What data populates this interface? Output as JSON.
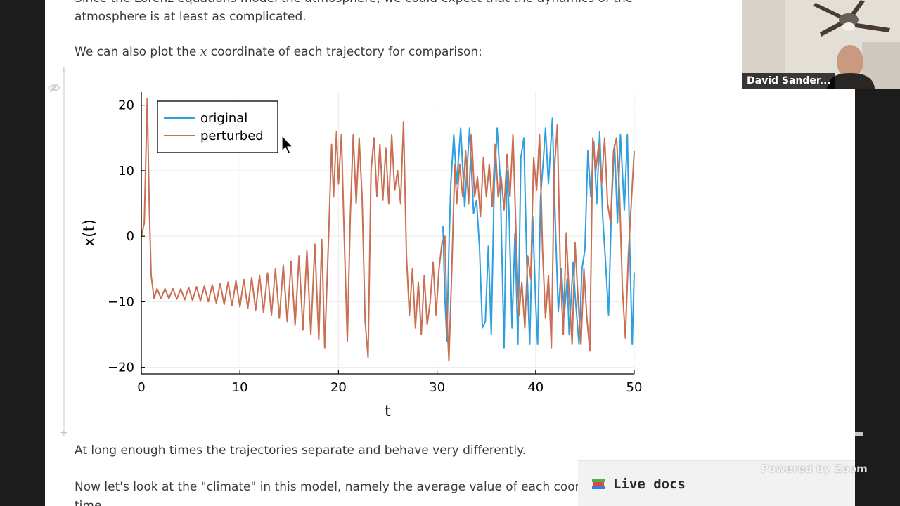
{
  "notebook": {
    "paragraph_top_1": "Since the Lorenz equations model the atmosphere, we could expect that the dynamics of the",
    "paragraph_top_2": "atmosphere is at least as complicated.",
    "paragraph_plot_before": "We can also plot the ",
    "paragraph_plot_var": "x",
    "paragraph_plot_after": " coordinate of each trajectory for comparison:",
    "paragraph_separate": "At long enough times the trajectories separate and behave very differently.",
    "paragraph_climate": "Now let's look at the \"climate\" in this model, namely the average value of each coordinate",
    "paragraph_climate_cont": "time",
    "cell_add_symbol": "+"
  },
  "chart_data": {
    "type": "line",
    "xlabel": "t",
    "ylabel": "x(t)",
    "xlim": [
      0,
      50
    ],
    "ylim": [
      -21,
      22
    ],
    "xticks": [
      0,
      10,
      20,
      30,
      40,
      50
    ],
    "yticks": [
      -20,
      -10,
      0,
      10,
      20
    ],
    "grid": true,
    "legend_position": "top-left",
    "series": [
      {
        "name": "original",
        "color": "#2e9fdf",
        "points": [
          [
            30.6,
            1.5
          ],
          [
            30.8,
            -9.5
          ],
          [
            31.0,
            -16.0
          ],
          [
            31.2,
            -2.0
          ],
          [
            31.4,
            8.0
          ],
          [
            31.7,
            15.5
          ],
          [
            32.0,
            8.0
          ],
          [
            32.4,
            16.5
          ],
          [
            32.8,
            4.5
          ],
          [
            33.3,
            16.5
          ],
          [
            33.7,
            3.5
          ],
          [
            34.0,
            5.5
          ],
          [
            34.3,
            -1.5
          ],
          [
            34.6,
            -14.0
          ],
          [
            34.9,
            -13.0
          ],
          [
            35.2,
            -1.5
          ],
          [
            35.5,
            -15.0
          ],
          [
            35.8,
            8.0
          ],
          [
            36.1,
            16.5
          ],
          [
            36.4,
            9.0
          ],
          [
            36.6,
            -4.0
          ],
          [
            36.8,
            -17.0
          ],
          [
            37.1,
            10.0
          ],
          [
            37.3,
            4.0
          ],
          [
            37.6,
            -14.0
          ],
          [
            37.9,
            0.5
          ],
          [
            38.2,
            -16.5
          ],
          [
            38.5,
            12.0
          ],
          [
            38.8,
            15.0
          ],
          [
            39.1,
            -4.0
          ],
          [
            39.4,
            -16.5
          ],
          [
            39.7,
            3.0
          ],
          [
            40.0,
            -10.0
          ],
          [
            40.2,
            -16.5
          ],
          [
            40.5,
            6.0
          ],
          [
            40.8,
            12.0
          ],
          [
            41.0,
            16.5
          ],
          [
            41.3,
            8.0
          ],
          [
            41.7,
            18.0
          ],
          [
            42.0,
            2.0
          ],
          [
            42.3,
            -11.5
          ],
          [
            42.6,
            -5.0
          ],
          [
            42.9,
            -12.0
          ],
          [
            43.2,
            -6.5
          ],
          [
            43.4,
            -15.0
          ],
          [
            43.8,
            -4.0
          ],
          [
            44.0,
            -9.0
          ],
          [
            44.4,
            -16.5
          ],
          [
            44.7,
            -5.0
          ],
          [
            45.0,
            -2.0
          ],
          [
            45.3,
            13.0
          ],
          [
            45.6,
            6.0
          ],
          [
            45.9,
            14.5
          ],
          [
            46.2,
            5.0
          ],
          [
            46.5,
            16.0
          ],
          [
            46.8,
            3.0
          ],
          [
            47.1,
            -4.0
          ],
          [
            47.4,
            -12.0
          ],
          [
            47.7,
            5.0
          ],
          [
            48.0,
            14.0
          ],
          [
            48.3,
            2.0
          ],
          [
            48.6,
            15.5
          ],
          [
            49.0,
            4.0
          ],
          [
            49.3,
            15.5
          ],
          [
            49.6,
            -5.0
          ],
          [
            49.8,
            -16.5
          ],
          [
            50.0,
            -5.5
          ]
        ]
      },
      {
        "name": "perturbed",
        "color": "#c96f53",
        "points": [
          [
            0.0,
            0.0
          ],
          [
            0.3,
            2.0
          ],
          [
            0.6,
            21.0
          ],
          [
            0.8,
            5.0
          ],
          [
            1.0,
            -6.0
          ],
          [
            1.3,
            -9.5
          ],
          [
            1.6,
            -8.0
          ],
          [
            2.0,
            -9.5
          ],
          [
            2.4,
            -8.0
          ],
          [
            2.8,
            -9.5
          ],
          [
            3.2,
            -8.0
          ],
          [
            3.6,
            -9.6
          ],
          [
            4.0,
            -8.0
          ],
          [
            4.4,
            -9.7
          ],
          [
            4.8,
            -7.8
          ],
          [
            5.2,
            -9.8
          ],
          [
            5.6,
            -7.7
          ],
          [
            6.0,
            -9.9
          ],
          [
            6.4,
            -7.6
          ],
          [
            6.8,
            -10.0
          ],
          [
            7.2,
            -7.4
          ],
          [
            7.6,
            -10.2
          ],
          [
            8.0,
            -7.2
          ],
          [
            8.4,
            -10.4
          ],
          [
            8.8,
            -7.0
          ],
          [
            9.2,
            -10.6
          ],
          [
            9.6,
            -6.8
          ],
          [
            10.0,
            -10.8
          ],
          [
            10.4,
            -6.6
          ],
          [
            10.8,
            -11.0
          ],
          [
            11.2,
            -6.3
          ],
          [
            11.6,
            -11.3
          ],
          [
            12.0,
            -6.0
          ],
          [
            12.4,
            -11.6
          ],
          [
            12.8,
            -5.6
          ],
          [
            13.2,
            -12.0
          ],
          [
            13.6,
            -5.0
          ],
          [
            14.0,
            -12.5
          ],
          [
            14.4,
            -4.4
          ],
          [
            14.8,
            -13.0
          ],
          [
            15.2,
            -3.8
          ],
          [
            15.6,
            -13.6
          ],
          [
            16.0,
            -3.0
          ],
          [
            16.4,
            -14.3
          ],
          [
            16.8,
            -2.2
          ],
          [
            17.2,
            -15.0
          ],
          [
            17.6,
            -1.2
          ],
          [
            18.0,
            -15.8
          ],
          [
            18.3,
            -0.5
          ],
          [
            18.6,
            -17.0
          ],
          [
            19.0,
            0.0
          ],
          [
            19.3,
            14.0
          ],
          [
            19.5,
            6.0
          ],
          [
            19.8,
            16.0
          ],
          [
            20.0,
            8.0
          ],
          [
            20.3,
            15.5
          ],
          [
            20.6,
            -1.0
          ],
          [
            20.9,
            -16.0
          ],
          [
            21.2,
            3.0
          ],
          [
            21.5,
            15.5
          ],
          [
            21.8,
            5.0
          ],
          [
            22.1,
            15.0
          ],
          [
            22.4,
            6.0
          ],
          [
            22.7,
            -13.0
          ],
          [
            23.0,
            -18.5
          ],
          [
            23.3,
            10.0
          ],
          [
            23.6,
            15.0
          ],
          [
            23.9,
            6.0
          ],
          [
            24.2,
            14.0
          ],
          [
            24.5,
            5.5
          ],
          [
            24.8,
            13.5
          ],
          [
            25.1,
            5.0
          ],
          [
            25.4,
            15.5
          ],
          [
            25.7,
            7.0
          ],
          [
            26.0,
            10.0
          ],
          [
            26.3,
            5.0
          ],
          [
            26.6,
            17.5
          ],
          [
            26.9,
            -3.0
          ],
          [
            27.2,
            -12.0
          ],
          [
            27.5,
            -5.0
          ],
          [
            27.8,
            -14.0
          ],
          [
            28.1,
            -7.0
          ],
          [
            28.4,
            -15.0
          ],
          [
            28.7,
            -6.0
          ],
          [
            29.0,
            -13.5
          ],
          [
            29.3,
            -10.0
          ],
          [
            29.6,
            -4.0
          ],
          [
            29.9,
            -12.0
          ],
          [
            30.2,
            -5.0
          ],
          [
            30.5,
            -1.0
          ],
          [
            30.8,
            0.0
          ],
          [
            31.0,
            -12.0
          ],
          [
            31.2,
            -19.0
          ],
          [
            31.5,
            -5.0
          ],
          [
            31.8,
            11.0
          ],
          [
            32.0,
            5.0
          ],
          [
            32.3,
            11.0
          ],
          [
            32.6,
            6.0
          ],
          [
            32.9,
            13.0
          ],
          [
            33.2,
            5.0
          ],
          [
            33.5,
            15.5
          ],
          [
            33.8,
            6.0
          ],
          [
            34.1,
            9.0
          ],
          [
            34.4,
            3.0
          ],
          [
            34.7,
            12.0
          ],
          [
            35.0,
            6.0
          ],
          [
            35.3,
            11.0
          ],
          [
            35.6,
            4.5
          ],
          [
            35.9,
            14.0
          ],
          [
            36.2,
            6.0
          ],
          [
            36.5,
            9.0
          ],
          [
            36.8,
            4.0
          ],
          [
            37.1,
            12.5
          ],
          [
            37.4,
            6.0
          ],
          [
            37.7,
            15.5
          ],
          [
            38.0,
            1.0
          ],
          [
            38.3,
            -12.0
          ],
          [
            38.6,
            -7.0
          ],
          [
            38.9,
            -14.0
          ],
          [
            39.2,
            -3.0
          ],
          [
            39.5,
            -6.5
          ],
          [
            39.8,
            12.0
          ],
          [
            40.1,
            7.0
          ],
          [
            40.4,
            15.5
          ],
          [
            40.7,
            -2.0
          ],
          [
            41.0,
            -12.5
          ],
          [
            41.3,
            -6.0
          ],
          [
            41.6,
            -17.0
          ],
          [
            41.9,
            10.0
          ],
          [
            42.2,
            17.0
          ],
          [
            42.5,
            -5.0
          ],
          [
            42.8,
            -15.0
          ],
          [
            43.1,
            0.5
          ],
          [
            43.4,
            -9.0
          ],
          [
            43.7,
            -16.5
          ],
          [
            44.0,
            -1.0
          ],
          [
            44.3,
            -9.5
          ],
          [
            44.6,
            -16.5
          ],
          [
            44.9,
            -5.0
          ],
          [
            45.2,
            -12.5
          ],
          [
            45.5,
            -17.5
          ],
          [
            45.8,
            15.0
          ],
          [
            46.1,
            10.0
          ],
          [
            46.4,
            14.0
          ],
          [
            46.7,
            8.0
          ],
          [
            47.0,
            15.0
          ],
          [
            47.3,
            5.0
          ],
          [
            47.6,
            2.0
          ],
          [
            47.9,
            13.0
          ],
          [
            48.2,
            15.0
          ],
          [
            48.5,
            7.0
          ],
          [
            48.8,
            -8.0
          ],
          [
            49.1,
            -15.5
          ],
          [
            49.4,
            -3.0
          ],
          [
            49.7,
            5.0
          ],
          [
            50.0,
            13.0
          ]
        ]
      }
    ]
  },
  "live_docs": {
    "label": "Live docs"
  },
  "zoom": {
    "powered_by": "Powered by Zoom"
  },
  "video": {
    "participant_name": "David Sander..."
  },
  "colors": {
    "original": "#2e9fdf",
    "perturbed": "#c96f53",
    "background": "#ffffff",
    "sidebar": "#1c1c1c"
  },
  "icons": {
    "hide": "eye-slash-icon",
    "book": "books-icon",
    "pointer": "cursor-arrow-icon"
  }
}
